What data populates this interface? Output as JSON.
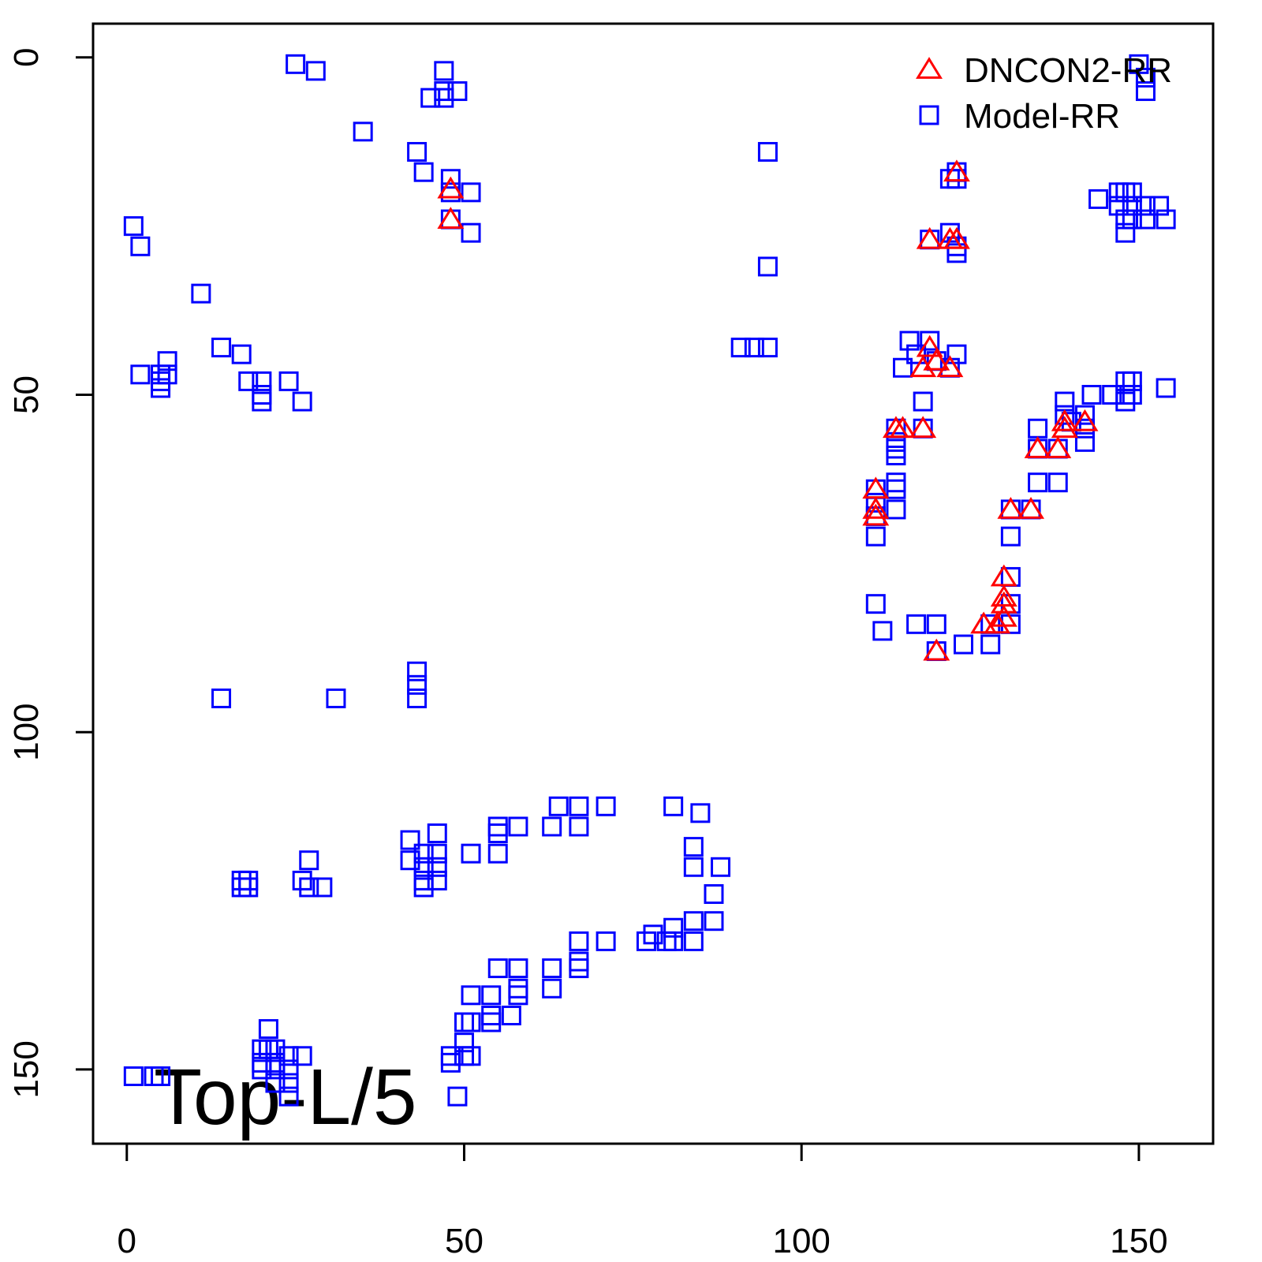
{
  "chart_data": {
    "type": "scatter",
    "annotation": "Top-L/5",
    "legend": "topright",
    "xlim": [
      -5,
      161
    ],
    "ylim": [
      161,
      -5
    ],
    "xticks": [
      0,
      50,
      100,
      150
    ],
    "yticks": [
      0,
      50,
      100,
      150
    ],
    "series": [
      {
        "name": "DNCON2-RR",
        "color": "#ff0000",
        "marker": "triangle",
        "x": [
          48,
          48,
          123,
          119,
          122,
          123,
          119,
          120,
          118,
          122,
          114,
          115,
          118,
          111,
          111,
          111,
          135,
          138,
          139,
          139,
          142,
          131,
          134,
          130,
          130,
          130,
          130,
          129,
          127,
          120
        ],
        "values": [
          19.5,
          24,
          17,
          27,
          27,
          27,
          43,
          45,
          46,
          46,
          55,
          55,
          55,
          64,
          67,
          68,
          58,
          58,
          54,
          55,
          54,
          67,
          67,
          77,
          80,
          81,
          83,
          84,
          84,
          88
        ]
      },
      {
        "name": "Model-RR",
        "color": "#0000ff",
        "marker": "square",
        "x": [
          25,
          28,
          35,
          47,
          47,
          49,
          45,
          47,
          43,
          44,
          48,
          48,
          51,
          48,
          51,
          1,
          2,
          11,
          14,
          17,
          2,
          5,
          6,
          6,
          5,
          5,
          18,
          20,
          20,
          20,
          24,
          26,
          14,
          31,
          43,
          43,
          43,
          95,
          95,
          91,
          93,
          95,
          150,
          151,
          151,
          123,
          122,
          123,
          123,
          119,
          122,
          123,
          144,
          147,
          148,
          149,
          147,
          149,
          151,
          153,
          154,
          151,
          149,
          148,
          148,
          116,
          119,
          115,
          117,
          120,
          123,
          122,
          118,
          114,
          118,
          114,
          114,
          114,
          114,
          114,
          114,
          111,
          111,
          111,
          111,
          111,
          112,
          117,
          120,
          120,
          124,
          128,
          128,
          131,
          131,
          131,
          131,
          131,
          134,
          135,
          138,
          135,
          135,
          138,
          139,
          139,
          140,
          142,
          142,
          142,
          143,
          146,
          148,
          149,
          148,
          149,
          148,
          154,
          64,
          67,
          71,
          63,
          67,
          58,
          55,
          55,
          55,
          51,
          81,
          85,
          84,
          84,
          88,
          87,
          87,
          84,
          81,
          78,
          77,
          80,
          81,
          84,
          71,
          67,
          67,
          67,
          63,
          63,
          58,
          55,
          58,
          58,
          57,
          54,
          54,
          51,
          54,
          50,
          51,
          50,
          50,
          51,
          48,
          48,
          49,
          42,
          42,
          44,
          44,
          46,
          46,
          46,
          46,
          44,
          44,
          17,
          18,
          17,
          18,
          27,
          26,
          27,
          29,
          21,
          20,
          21,
          22,
          20,
          22,
          20,
          22,
          24,
          24,
          26,
          24,
          22,
          24,
          1,
          4,
          5
        ],
        "values": [
          1,
          2,
          11,
          2,
          5,
          5,
          6,
          6,
          14,
          17,
          18,
          20,
          20,
          24,
          26,
          25,
          28,
          35,
          43,
          44,
          47,
          47,
          45,
          47,
          48,
          49,
          48,
          48,
          50,
          51,
          48,
          51,
          95,
          95,
          91,
          93,
          95,
          14,
          31,
          43,
          43,
          43,
          1,
          3,
          5,
          17,
          18,
          18,
          28,
          27,
          26,
          29,
          21,
          20,
          20,
          20,
          22,
          22,
          22,
          22,
          24,
          24,
          24,
          24,
          26,
          42,
          42,
          46,
          44,
          45,
          44,
          46,
          51,
          55,
          55,
          57,
          58,
          59,
          63,
          64,
          67,
          64,
          66,
          68,
          71,
          81,
          85,
          84,
          84,
          88,
          87,
          87,
          84,
          84,
          81,
          77,
          71,
          67,
          67,
          63,
          63,
          55,
          58,
          58,
          51,
          53,
          54,
          53,
          55,
          57,
          50,
          50,
          48,
          48,
          50,
          50,
          51,
          49,
          111,
          111,
          111,
          114,
          114,
          114,
          114,
          115,
          118,
          118,
          111,
          112,
          117,
          120,
          120,
          124,
          128,
          128,
          129,
          130,
          131,
          131,
          131,
          131,
          131,
          131,
          134,
          135,
          135,
          138,
          135,
          135,
          138,
          139,
          142,
          142,
          143,
          139,
          139,
          143,
          143,
          146,
          148,
          148,
          148,
          149,
          154,
          116,
          119,
          118,
          120,
          115,
          118,
          120,
          122,
          122,
          123,
          122,
          122,
          123,
          123,
          119,
          122,
          123,
          123,
          144,
          147,
          147,
          147,
          149,
          149,
          150,
          150,
          148,
          150,
          148,
          152,
          152,
          154,
          151,
          151,
          151
        ]
      }
    ]
  }
}
